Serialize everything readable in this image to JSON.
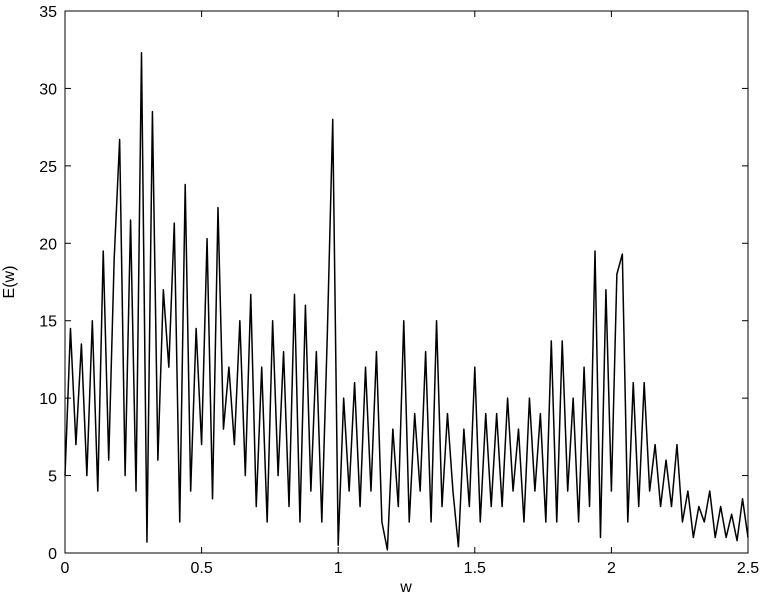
{
  "chart_data": {
    "type": "line",
    "xlabel": "w",
    "ylabel": "E(w)",
    "x": [
      0,
      0.02,
      0.04,
      0.06,
      0.08,
      0.1,
      0.12,
      0.14,
      0.16,
      0.18,
      0.2,
      0.22,
      0.24,
      0.26,
      0.28,
      0.3,
      0.32,
      0.34,
      0.36,
      0.38,
      0.4,
      0.42,
      0.44,
      0.46,
      0.48,
      0.5,
      0.52,
      0.54,
      0.56,
      0.58,
      0.6,
      0.62,
      0.64,
      0.66,
      0.68,
      0.7,
      0.72,
      0.74,
      0.76,
      0.78,
      0.8,
      0.82,
      0.84,
      0.86,
      0.88,
      0.9,
      0.92,
      0.94,
      0.96,
      0.98,
      1,
      1.02,
      1.04,
      1.06,
      1.08,
      1.1,
      1.12,
      1.14,
      1.16,
      1.18,
      1.2,
      1.22,
      1.24,
      1.26,
      1.28,
      1.3,
      1.32,
      1.34,
      1.36,
      1.38,
      1.4,
      1.42,
      1.44,
      1.46,
      1.48,
      1.5,
      1.52,
      1.54,
      1.56,
      1.58,
      1.6,
      1.62,
      1.64,
      1.66,
      1.68,
      1.7,
      1.72,
      1.74,
      1.76,
      1.78,
      1.8,
      1.82,
      1.84,
      1.86,
      1.88,
      1.9,
      1.92,
      1.94,
      1.96,
      1.98,
      2,
      2.02,
      2.04,
      2.06,
      2.08,
      2.1,
      2.12,
      2.14,
      2.16,
      2.18,
      2.2,
      2.22,
      2.24,
      2.26,
      2.28,
      2.3,
      2.32,
      2.34,
      2.36,
      2.38,
      2.4,
      2.42,
      2.44,
      2.46,
      2.48,
      2.5
    ],
    "series": [
      {
        "color": "#000000",
        "values": [
          5,
          14.5,
          7,
          13.5,
          5,
          15,
          4,
          19.5,
          6,
          19,
          26.7,
          5,
          21.5,
          4,
          32.3,
          0.7,
          28.5,
          6,
          17,
          12,
          21.3,
          2,
          23.8,
          4,
          14.5,
          7,
          20.3,
          3.5,
          22.3,
          8,
          12,
          7,
          15,
          5,
          16.7,
          3,
          12,
          2,
          15,
          5,
          13,
          3,
          16.7,
          2,
          16,
          4,
          13,
          2,
          14,
          28,
          0.5,
          10,
          4,
          11,
          3,
          12,
          4,
          13,
          2,
          0.2,
          8,
          3,
          15,
          2,
          9,
          4,
          13,
          2,
          15,
          3,
          9,
          4,
          0.4,
          8,
          3,
          12,
          2,
          9,
          3,
          9,
          3,
          10,
          4,
          8,
          2,
          10,
          4,
          9,
          2,
          13.7,
          2,
          13.7,
          4,
          10,
          2,
          12,
          3,
          19.5,
          1,
          17,
          4,
          18,
          19.3,
          2,
          11,
          3,
          11,
          4,
          7,
          3,
          6,
          3,
          7,
          2,
          4,
          1,
          3,
          2,
          4,
          1,
          3,
          1,
          2.5,
          0.8,
          3.5,
          1
        ]
      }
    ],
    "xlim": [
      0,
      2.5
    ],
    "ylim": [
      0,
      35
    ],
    "xticks": [
      0,
      0.5,
      1,
      1.5,
      2,
      2.5
    ],
    "yticks": [
      0,
      5,
      10,
      15,
      20,
      25,
      30,
      35
    ]
  }
}
